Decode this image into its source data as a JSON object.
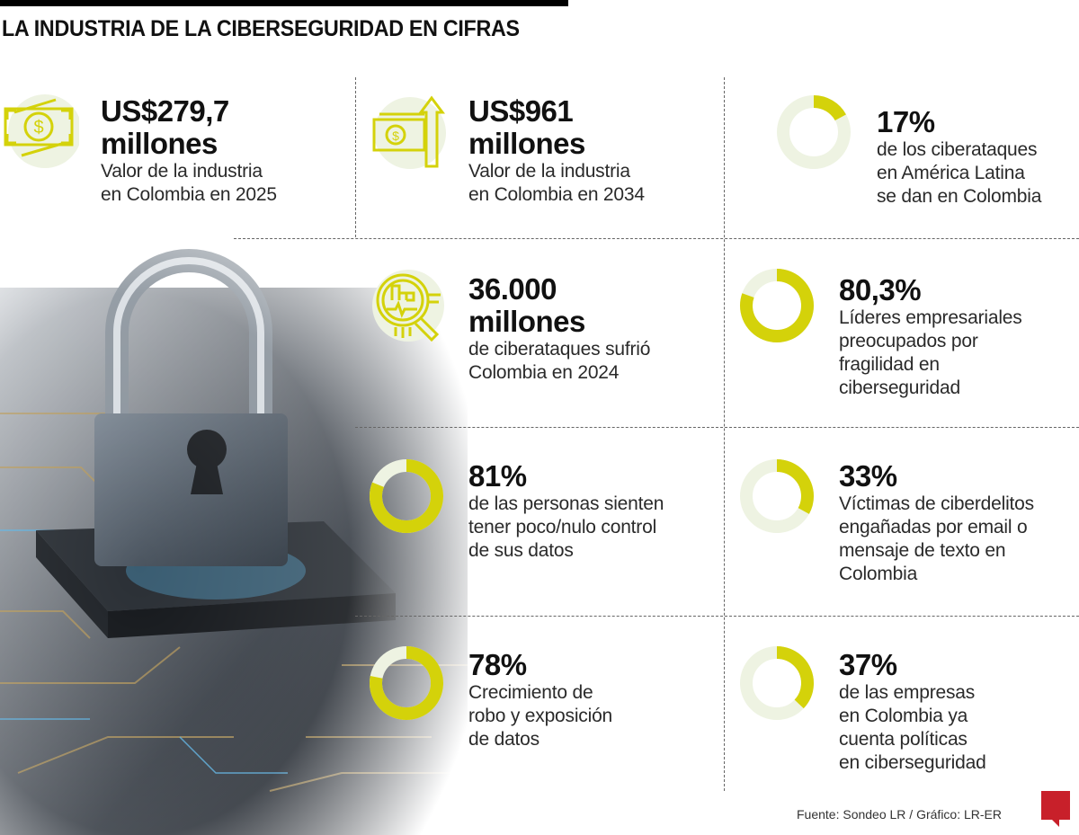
{
  "header": {
    "title": "LA INDUSTRIA DE LA CIBERSEGURIDAD EN CIFRAS"
  },
  "colors": {
    "accent": "#d4d20a",
    "ring_bg": "#eef3e2",
    "icon_bg": "#eef3e2",
    "logo": "#c8202a"
  },
  "stats": [
    {
      "icon": "money-bill-icon",
      "value": "US$279,7",
      "value2": "millones",
      "desc": [
        "Valor de la industria",
        "en Colombia en 2025"
      ]
    },
    {
      "icon": "money-growth-arrow-icon",
      "value": "US$961",
      "value2": "millones",
      "desc": [
        "Valor de la industria",
        "en Colombia en 2034"
      ]
    },
    {
      "icon": "data-magnifier-icon",
      "value": "36.000",
      "value2": "millones",
      "desc": [
        "de ciberataques sufrió",
        "Colombia en 2024"
      ]
    }
  ],
  "chart_data": {
    "type": "pie",
    "variant": "donut",
    "items": [
      {
        "value": 17,
        "label": "17%",
        "desc": [
          "de los ciberataques",
          "en América Latina",
          "se dan en Colombia"
        ]
      },
      {
        "value": 80.3,
        "label": "80,3%",
        "desc": [
          "Líderes empresariales",
          "preocupados por",
          "fragilidad en",
          "ciberseguridad"
        ]
      },
      {
        "value": 81,
        "label": "81%",
        "desc": [
          "de las personas sienten",
          "tener poco/nulo control",
          "de sus datos"
        ]
      },
      {
        "value": 33,
        "label": "33%",
        "desc": [
          "Víctimas de ciberdelitos",
          "engañadas por email o",
          "mensaje de texto en",
          "Colombia"
        ]
      },
      {
        "value": 78,
        "label": "78%",
        "desc": [
          "Crecimiento de",
          "robo y exposición",
          "de datos"
        ]
      },
      {
        "value": 37,
        "label": "37%",
        "desc": [
          "de las empresas",
          "en Colombia ya",
          "cuenta políticas",
          "en ciberseguridad"
        ]
      }
    ]
  },
  "footer": {
    "source": "Fuente: Sondeo LR / Gráfico: LR-ER",
    "logo": "LR"
  }
}
